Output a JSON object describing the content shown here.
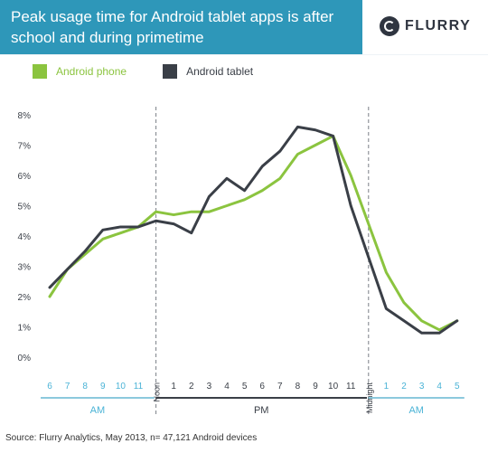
{
  "header": {
    "title": "Peak usage time for Android tablet apps is after school and during primetime",
    "logo_text": "FLURRY",
    "band_color": "#2e97b9"
  },
  "chart_data": {
    "type": "line",
    "title": "Peak usage time for Android tablet apps is after school and during primetime",
    "ylim": [
      0,
      8
    ],
    "y_ticks": [
      "0%",
      "1%",
      "2%",
      "3%",
      "4%",
      "5%",
      "6%",
      "7%",
      "8%"
    ],
    "x_ticks": [
      "6",
      "7",
      "8",
      "9",
      "10",
      "11",
      "Noon",
      "1",
      "2",
      "3",
      "4",
      "5",
      "6",
      "7",
      "8",
      "9",
      "10",
      "11",
      "Midnight",
      "1",
      "2",
      "3",
      "4",
      "5"
    ],
    "x_hours": [
      6,
      7,
      8,
      9,
      10,
      11,
      12,
      13,
      14,
      15,
      16,
      17,
      18,
      19,
      20,
      21,
      22,
      23,
      24,
      25,
      26,
      27,
      28,
      29
    ],
    "period_labels": [
      {
        "label": "AM",
        "from": 6,
        "to": 11.5,
        "color": "#8cc9dd"
      },
      {
        "label": "PM",
        "from": 12.5,
        "to": 23.5,
        "color": "#3a3f47"
      },
      {
        "label": "AM",
        "from": 24.5,
        "to": 29,
        "color": "#8cc9dd"
      }
    ],
    "dividers": [
      12,
      24
    ],
    "legend_position": "top-left",
    "grid": false,
    "series": [
      {
        "name": "Android phone",
        "color": "#8bc43f",
        "values": [
          2.0,
          2.9,
          3.4,
          3.9,
          4.1,
          4.3,
          4.8,
          4.7,
          4.8,
          4.8,
          5.0,
          5.2,
          5.5,
          5.9,
          6.7,
          7.0,
          7.3,
          6.0,
          4.4,
          2.8,
          1.8,
          1.2,
          0.9,
          1.2
        ]
      },
      {
        "name": "Android tablet",
        "color": "#3a3f47",
        "values": [
          2.3,
          2.9,
          3.5,
          4.2,
          4.3,
          4.3,
          4.5,
          4.4,
          4.1,
          5.3,
          5.9,
          5.5,
          6.3,
          6.8,
          7.6,
          7.5,
          7.3,
          5.0,
          3.3,
          1.6,
          1.2,
          0.8,
          0.8,
          1.2
        ]
      }
    ]
  },
  "source": "Source: Flurry Analytics, May 2013, n= 47,121 Android devices"
}
